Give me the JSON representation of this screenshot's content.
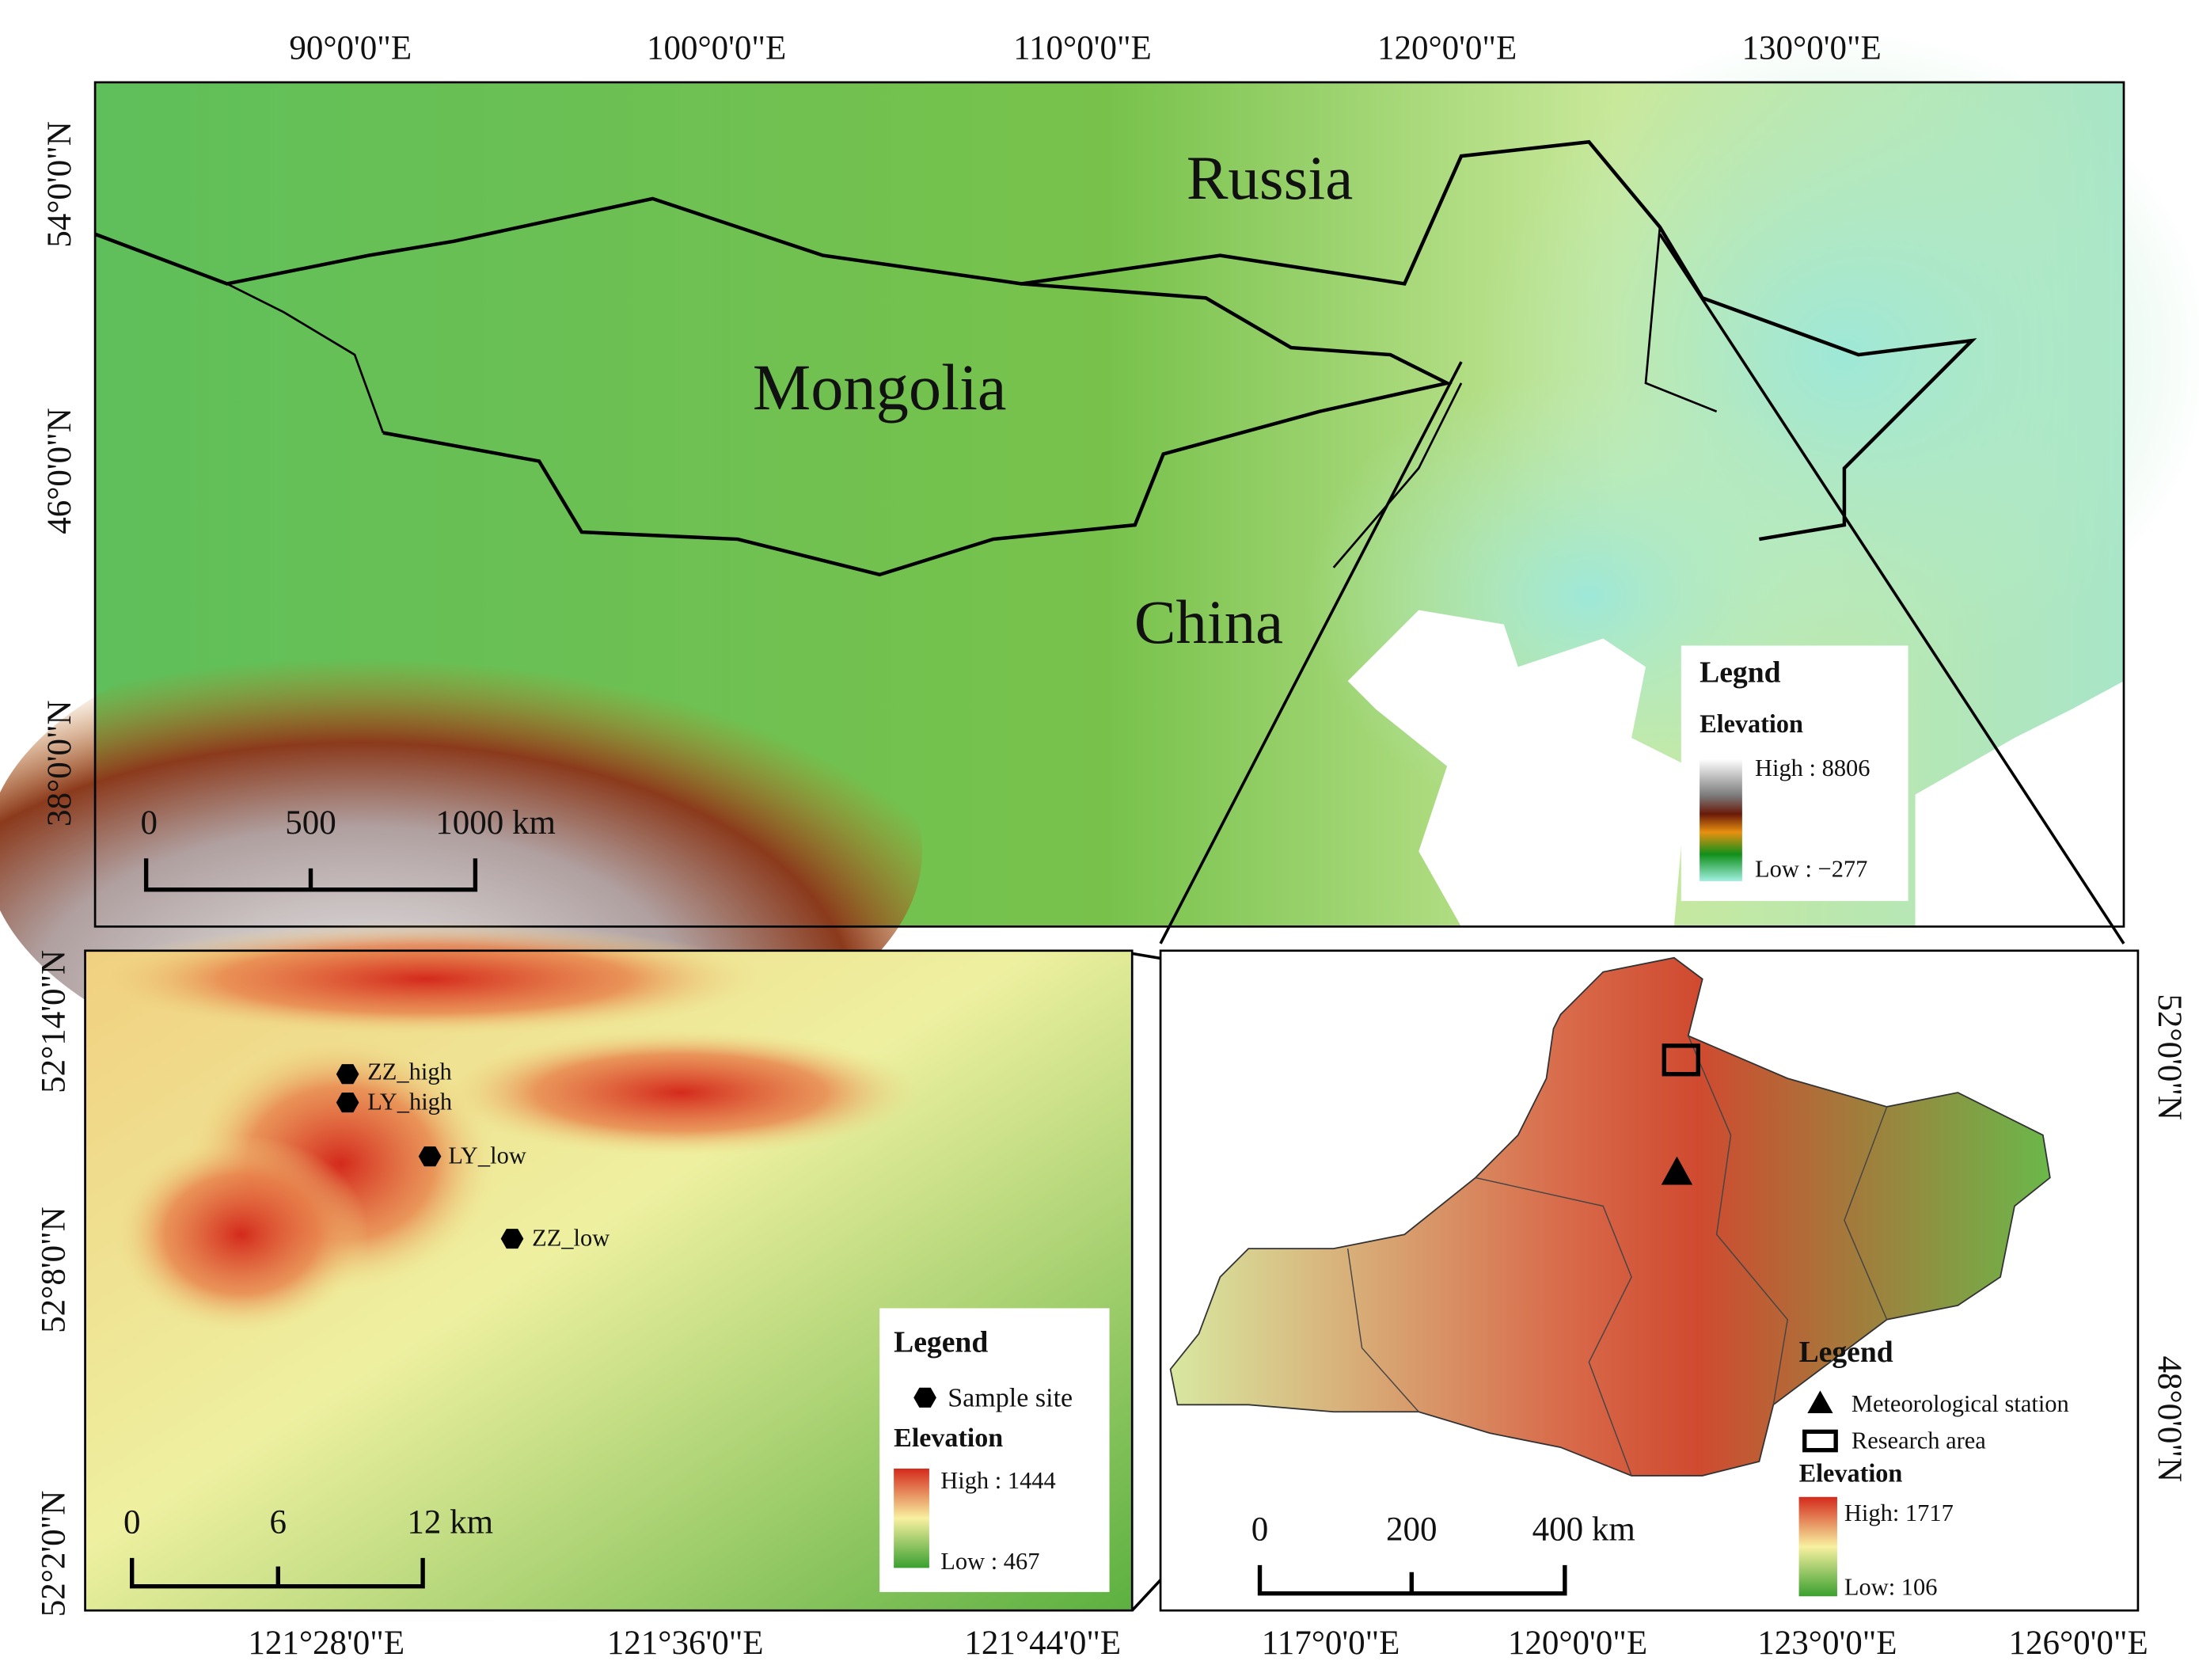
{
  "top_map": {
    "lon_labels": [
      "90°0'0\"E",
      "100°0'0\"E",
      "110°0'0\"E",
      "120°0'0\"E",
      "130°0'0\"E"
    ],
    "lat_labels": [
      "54°0'0\"N",
      "46°0'0\"N",
      "38°0'0\"N"
    ],
    "countries": [
      "Russia",
      "Mongolia",
      "China"
    ],
    "scale": [
      "0",
      "500",
      "1000  km"
    ],
    "legend": {
      "title": "Legnd",
      "subtitle": "Elevation",
      "high": "High : 8806",
      "low": "Low : −277"
    }
  },
  "detail_map": {
    "lat_labels": [
      "52°14'0\"N",
      "52°8'0\"N",
      "52°2'0\"N"
    ],
    "lon_labels": [
      "121°28'0\"E",
      "121°36'0\"E",
      "121°44'0\"E"
    ],
    "sites": [
      "ZZ_high",
      "LY_high",
      "LY_low",
      "ZZ_low"
    ],
    "scale": [
      "0",
      "6",
      "12 km"
    ],
    "legend": {
      "title": "Legend",
      "sample": "Sample site",
      "subtitle": "Elevation",
      "high": "High : 1444",
      "low": "Low : 467"
    }
  },
  "region_map": {
    "lat_labels": [
      "52°0'0\"N",
      "48°0'0\"N"
    ],
    "lon_labels": [
      "117°0'0\"E",
      "120°0'0\"E",
      "123°0'0\"E",
      "126°0'0\"E"
    ],
    "scale": [
      "0",
      "200",
      "400  km"
    ],
    "legend": {
      "title": "Legend",
      "station": "Meteorological station",
      "area": "Research area",
      "subtitle": "Elevation",
      "high": "High: 1717",
      "low": "Low: 106"
    }
  }
}
